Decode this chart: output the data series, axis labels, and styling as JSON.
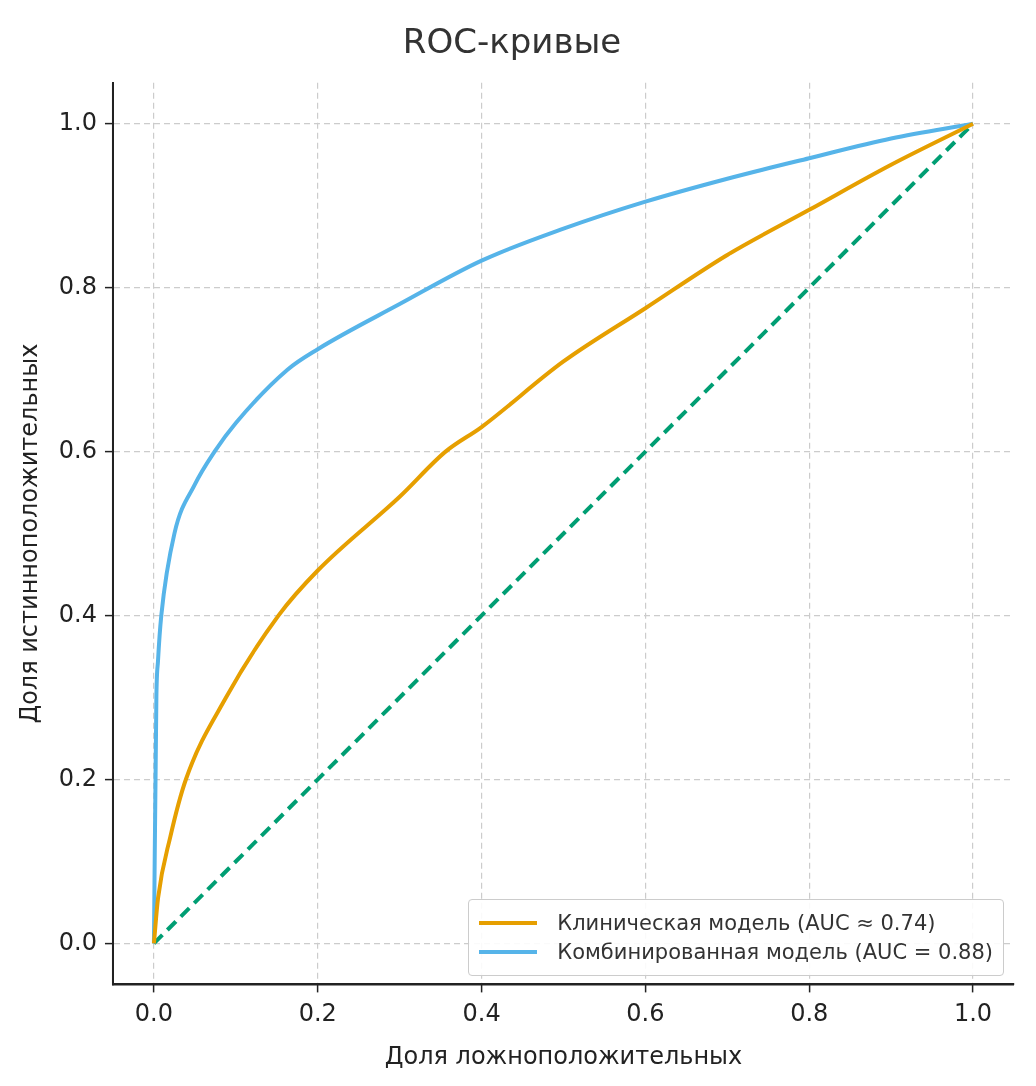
{
  "chart_data": {
    "type": "line",
    "title": "ROC-кривые",
    "xlabel": "Доля ложноположительных",
    "ylabel": "Доля истинноположительных",
    "series": [
      {
        "name": "Клиническая модель (AUC ≈ 0.74)",
        "color": "#e69f00",
        "x": [
          0,
          0.005,
          0.02,
          0.039,
          0.088,
          0.152,
          0.2,
          0.3,
          0.356,
          0.4,
          0.5,
          0.6,
          0.7,
          0.8,
          0.9,
          1
        ],
        "values": [
          0,
          0.055,
          0.13,
          0.2,
          0.3,
          0.4,
          0.455,
          0.545,
          0.6,
          0.63,
          0.71,
          0.775,
          0.84,
          0.895,
          0.95,
          1
        ]
      },
      {
        "name": "Комбинированная модель (AUC = 0.88)",
        "color": "#56b4e9",
        "x": [
          0,
          0.003,
          0.005,
          0.009,
          0.025,
          0.05,
          0.074,
          0.1,
          0.163,
          0.2,
          0.3,
          0.4,
          0.5,
          0.6,
          0.7,
          0.8,
          0.9,
          1
        ],
        "values": [
          0,
          0.3,
          0.345,
          0.4,
          0.5,
          0.56,
          0.6,
          0.635,
          0.7,
          0.725,
          0.78,
          0.833,
          0.872,
          0.905,
          0.933,
          0.958,
          0.982,
          1
        ]
      },
      {
        "color": "#009e73",
        "line_style": "dashed",
        "x": [
          0,
          1
        ],
        "values": [
          0,
          1
        ]
      }
    ],
    "xlim": [
      -0.05,
      1.05
    ],
    "ylim": [
      -0.05,
      1.05
    ],
    "xticks": [
      {
        "value": 0,
        "label": "0.0"
      },
      0.2,
      0.4,
      0.6,
      0.8,
      {
        "value": 1,
        "label": "1.0"
      }
    ],
    "yticks": [
      {
        "value": 0,
        "label": "0.0"
      },
      0.2,
      0.4,
      0.6,
      0.8,
      {
        "value": 1,
        "label": "1.0"
      }
    ],
    "grid": true,
    "legend": "bottom right",
    "line_style": "solid",
    "marker": "none"
  }
}
